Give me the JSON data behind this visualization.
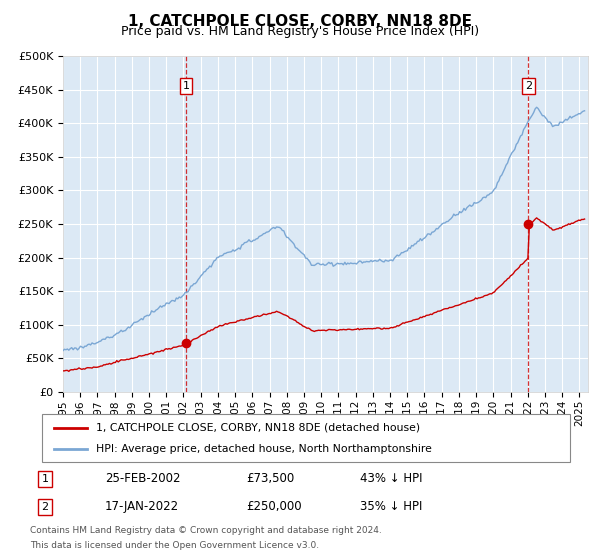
{
  "title": "1, CATCHPOLE CLOSE, CORBY, NN18 8DE",
  "subtitle": "Price paid vs. HM Land Registry's House Price Index (HPI)",
  "legend_line1": "1, CATCHPOLE CLOSE, CORBY, NN18 8DE (detached house)",
  "legend_line2": "HPI: Average price, detached house, North Northamptonshire",
  "footnote1": "Contains HM Land Registry data © Crown copyright and database right 2024.",
  "footnote2": "This data is licensed under the Open Government Licence v3.0.",
  "sale1_date": "25-FEB-2002",
  "sale1_price": 73500,
  "sale1_label": "43% ↓ HPI",
  "sale1_x": 2002.14,
  "sale2_date": "17-JAN-2022",
  "sale2_price": 250000,
  "sale2_label": "35% ↓ HPI",
  "sale2_x": 2022.04,
  "hpi_color": "#7ba7d4",
  "price_color": "#cc0000",
  "plot_bg": "#dce9f5",
  "grid_color": "#ffffff",
  "marker_box_color": "#cc0000",
  "ylim_min": 0,
  "ylim_max": 500000,
  "xmin": 1995,
  "xmax": 2025.5
}
